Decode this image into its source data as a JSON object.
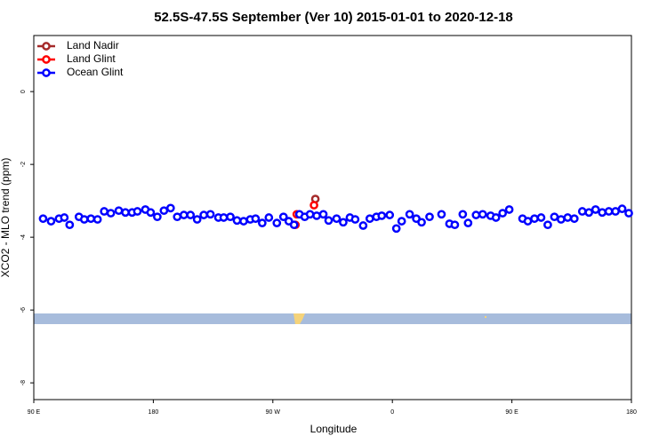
{
  "chart_data": {
    "type": "scatter",
    "title": "52.5S-47.5S September (Ver 10)   2015-01-01 to 2020-12-18",
    "x_label": "Longitude",
    "y_label": "XCO2 - MLO trend (ppm)",
    "xlim": [
      90,
      540
    ],
    "ylim": [
      -8.46,
      1.54
    ],
    "xticks": [
      {
        "value": 90,
        "label": "90 E"
      },
      180,
      {
        "value": 270,
        "label": "90 W"
      },
      {
        "value": 360,
        "label": "0"
      },
      {
        "value": 450,
        "label": "90 E"
      },
      {
        "value": 540,
        "label": "180"
      }
    ],
    "yticks": [
      0,
      -2,
      -4,
      -6,
      -8
    ],
    "legend": "top-left",
    "series": [
      {
        "name": "Land Nadir",
        "color": "#a52a2a",
        "x": [
          302
        ],
        "values": [
          -2.95
        ]
      },
      {
        "name": "Land Glint",
        "color": "#ff0000",
        "x": [
          288,
          287,
          301
        ],
        "values": [
          -3.37,
          -3.66,
          -3.12
        ]
      },
      {
        "name": "Ocean Glint",
        "color": "#0000ff",
        "x": [
          97,
          103,
          109,
          113,
          117,
          124,
          128,
          133,
          138,
          143,
          148,
          154,
          159,
          164,
          168,
          174,
          178,
          183,
          188,
          193,
          198,
          203,
          208,
          213,
          218,
          223,
          229,
          233,
          238,
          243,
          248,
          253,
          257,
          262,
          267,
          273,
          278,
          282,
          286,
          290,
          294,
          298,
          303,
          308,
          312,
          318,
          323,
          328,
          332,
          338,
          343,
          348,
          352,
          358,
          363,
          367,
          373,
          378,
          382,
          388,
          397,
          403,
          407,
          413,
          417,
          423,
          428,
          434,
          438,
          443,
          448,
          458,
          462,
          467,
          472,
          477,
          482,
          487,
          492,
          497,
          503,
          508,
          513,
          518,
          523,
          528,
          533,
          538
        ],
        "values": [
          -3.49,
          -3.56,
          -3.49,
          -3.46,
          -3.66,
          -3.44,
          -3.51,
          -3.49,
          -3.51,
          -3.29,
          -3.34,
          -3.27,
          -3.32,
          -3.32,
          -3.29,
          -3.24,
          -3.32,
          -3.44,
          -3.27,
          -3.2,
          -3.44,
          -3.39,
          -3.39,
          -3.51,
          -3.39,
          -3.37,
          -3.46,
          -3.46,
          -3.44,
          -3.54,
          -3.56,
          -3.51,
          -3.49,
          -3.61,
          -3.46,
          -3.61,
          -3.44,
          -3.56,
          -3.66,
          -3.37,
          -3.44,
          -3.37,
          -3.41,
          -3.37,
          -3.54,
          -3.49,
          -3.59,
          -3.46,
          -3.51,
          -3.68,
          -3.49,
          -3.44,
          -3.41,
          -3.39,
          -3.76,
          -3.56,
          -3.37,
          -3.49,
          -3.59,
          -3.44,
          -3.37,
          -3.63,
          -3.66,
          -3.37,
          -3.61,
          -3.39,
          -3.37,
          -3.41,
          -3.46,
          -3.34,
          -3.24,
          -3.49,
          -3.56,
          -3.49,
          -3.46,
          -3.66,
          -3.44,
          -3.51,
          -3.46,
          -3.49,
          -3.29,
          -3.32,
          -3.24,
          -3.32,
          -3.29,
          -3.29,
          -3.22,
          -3.34
        ]
      }
    ]
  }
}
